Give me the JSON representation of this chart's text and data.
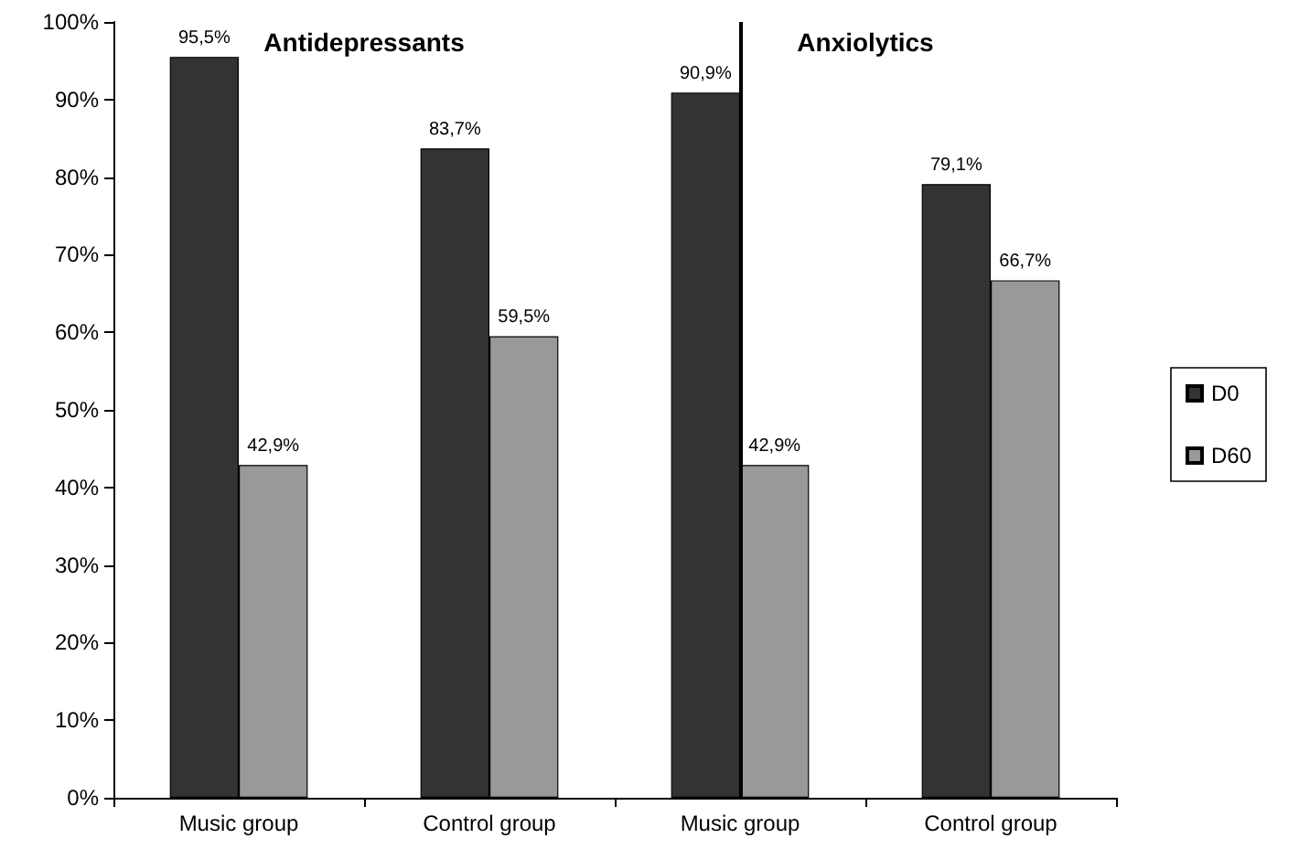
{
  "chart_data": {
    "type": "bar",
    "categories": [
      "Music group",
      "Control group",
      "Music group",
      "Control group"
    ],
    "annotations": [
      "Antidepressants",
      "Anxiolytics"
    ],
    "series": [
      {
        "name": "D0",
        "color": "#333333",
        "values": [
          95.5,
          83.7,
          90.9,
          79.1
        ],
        "value_labels": [
          "95,5%",
          "83,7%",
          "90,9%",
          "79,1%"
        ]
      },
      {
        "name": "D60",
        "color": "#999999",
        "values": [
          42.9,
          59.5,
          42.9,
          66.7
        ],
        "value_labels": [
          "42,9%",
          "59,5%",
          "42,9%",
          "66,7%"
        ]
      }
    ],
    "ylim": [
      0,
      100
    ],
    "yticks": [
      {
        "value": 0,
        "label": "0%"
      },
      {
        "value": 10,
        "label": "10%"
      },
      {
        "value": 20,
        "label": "20%"
      },
      {
        "value": 30,
        "label": "30%"
      },
      {
        "value": 40,
        "label": "40%"
      },
      {
        "value": 50,
        "label": "50%"
      },
      {
        "value": 60,
        "label": "60%"
      },
      {
        "value": 70,
        "label": "70%"
      },
      {
        "value": 80,
        "label": "80%"
      },
      {
        "value": 90,
        "label": "90%"
      },
      {
        "value": 100,
        "label": "100%"
      }
    ],
    "legend": "right"
  }
}
